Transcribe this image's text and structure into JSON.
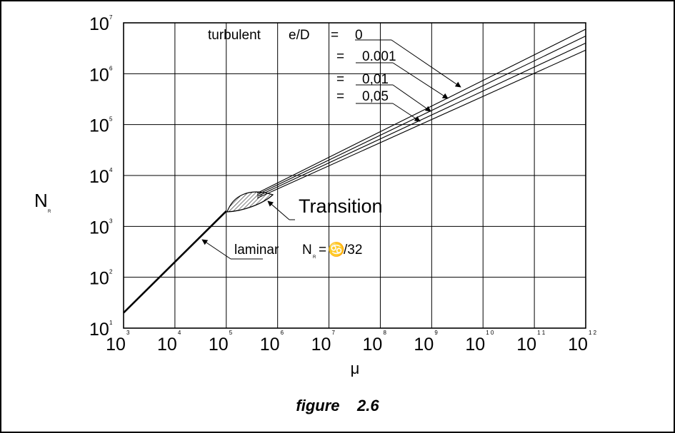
{
  "chart_data": {
    "type": "line",
    "xscale": "log",
    "yscale": "log",
    "xlim": [
      1000,
      1000000000000
    ],
    "ylim": [
      10,
      10000000
    ],
    "grid": true,
    "xlabel": "μ",
    "ylabel": "N",
    "ylabel_sub": "R",
    "x_ticks": [
      {
        "base": "10",
        "exp": "3"
      },
      {
        "base": "10",
        "exp": "4"
      },
      {
        "base": "10",
        "exp": "5"
      },
      {
        "base": "10",
        "exp": "6"
      },
      {
        "base": "10",
        "exp": "7"
      },
      {
        "base": "10",
        "exp": "8"
      },
      {
        "base": "10",
        "exp": "9"
      },
      {
        "base": "10",
        "exp": "1 0"
      },
      {
        "base": "10",
        "exp": "1 1"
      },
      {
        "base": "10",
        "exp": "1 2"
      }
    ],
    "y_ticks": [
      {
        "base": "10",
        "exp": "1"
      },
      {
        "base": "10",
        "exp": "2"
      },
      {
        "base": "10",
        "exp": "3"
      },
      {
        "base": "10",
        "exp": "4"
      },
      {
        "base": "10",
        "exp": "5"
      },
      {
        "base": "10",
        "exp": "6"
      },
      {
        "base": "10",
        "exp": "7"
      }
    ],
    "series": [
      {
        "id": "laminar",
        "x": [
          1000,
          100000
        ],
        "y": [
          20,
          2000
        ],
        "bold": true
      },
      {
        "id": "turbulent-0",
        "x": [
          400000,
          1000000000000
        ],
        "y": [
          4500,
          7500000
        ]
      },
      {
        "id": "turbulent-0.001",
        "x": [
          400000,
          1000000000000
        ],
        "y": [
          4200,
          5500000
        ]
      },
      {
        "id": "turbulent-0.01",
        "x": [
          400000,
          1000000000000
        ],
        "y": [
          3900,
          4000000
        ]
      },
      {
        "id": "turbulent-0.05",
        "x": [
          400000,
          1000000000000
        ],
        "y": [
          3600,
          2900000
        ]
      }
    ],
    "transition_region": {
      "x": [
        100000,
        400000
      ],
      "y": [
        2000,
        4200
      ]
    },
    "annotations": {
      "turbulent_word": "turbulent",
      "ed_label": "e/D",
      "eq": "=",
      "ed_values": [
        "0",
        "0.001",
        "0,01",
        "0,05"
      ],
      "transition": "Transition",
      "laminar_word": "laminar",
      "laminar_n": "N",
      "laminar_sub": "R",
      "laminar_eq": "=",
      "laminar_symbol": "♋",
      "laminar_div": "/32"
    }
  },
  "caption": "figure    2.6"
}
